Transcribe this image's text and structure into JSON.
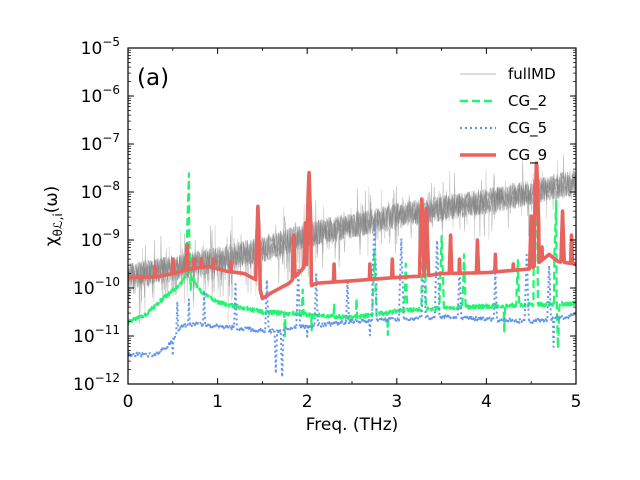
{
  "chart_data": {
    "type": "line",
    "panel_label": "(a)",
    "xlabel": "Freq. (THz)",
    "ylabel": "χθℒ,i(ω)",
    "ylabel_parts": {
      "chi": "χ",
      "sub_theta": "θ",
      "sub_L": "ℒ",
      "sub_sep": ",",
      "sub_i": "i",
      "arg": "(ω)"
    },
    "xlim": [
      0,
      5
    ],
    "ylim_log10": [
      -12,
      -5
    ],
    "x_ticks": [
      0,
      1,
      2,
      3,
      4,
      5
    ],
    "x_tick_labels": [
      "0",
      "1",
      "2",
      "3",
      "4",
      "5"
    ],
    "y_ticks": [
      {
        "base": "10",
        "exp": "−5",
        "value": -5
      },
      {
        "base": "10",
        "exp": "−6",
        "value": -6
      },
      {
        "base": "10",
        "exp": "−7",
        "value": -7
      },
      {
        "base": "10",
        "exp": "−8",
        "value": -8
      },
      {
        "base": "10",
        "exp": "−9",
        "value": -9
      },
      {
        "base": "10",
        "exp": "−10",
        "value": -10
      },
      {
        "base": "10",
        "exp": "−11",
        "value": -11
      },
      {
        "base": "10",
        "exp": "−12",
        "value": -12
      }
    ],
    "legend_position": "top-right",
    "series": [
      {
        "name": "fullMD",
        "color": "#7f7f7f",
        "style": "solid-noisy-band",
        "trend_log10": [
          [
            0.0,
            -9.75
          ],
          [
            0.5,
            -9.6
          ],
          [
            1.0,
            -9.4
          ],
          [
            1.5,
            -9.2
          ],
          [
            2.0,
            -8.9
          ],
          [
            2.5,
            -8.7
          ],
          [
            3.0,
            -8.5
          ],
          [
            3.5,
            -8.35
          ],
          [
            4.0,
            -8.2
          ],
          [
            4.5,
            -8.0
          ],
          [
            5.0,
            -7.8
          ]
        ]
      },
      {
        "name": "CG_2",
        "color": "#1ff56e",
        "style": "dashed",
        "baseline_log10": [
          [
            0.0,
            -10.72
          ],
          [
            0.2,
            -10.55
          ],
          [
            0.4,
            -10.2
          ],
          [
            0.6,
            -9.9
          ],
          [
            0.65,
            -9.7
          ],
          [
            0.7,
            -9.75
          ],
          [
            0.8,
            -10.05
          ],
          [
            1.0,
            -10.3
          ],
          [
            1.5,
            -10.5
          ],
          [
            2.0,
            -10.55
          ],
          [
            2.5,
            -10.62
          ],
          [
            3.0,
            -10.48
          ],
          [
            3.5,
            -10.42
          ],
          [
            4.0,
            -10.38
          ],
          [
            4.5,
            -10.35
          ],
          [
            5.0,
            -10.32
          ]
        ],
        "peaks": [
          [
            0.68,
            -7.6
          ],
          [
            1.95,
            -10.0
          ],
          [
            2.3,
            -10.3
          ],
          [
            2.55,
            -10.2
          ],
          [
            2.75,
            -9.2
          ],
          [
            3.1,
            -9.5
          ],
          [
            3.3,
            -8.4
          ],
          [
            3.5,
            -8.9
          ],
          [
            3.75,
            -9.3
          ],
          [
            4.35,
            -9.4
          ],
          [
            4.55,
            -7.8
          ],
          [
            4.78,
            -8.1
          ]
        ],
        "dips": [
          [
            0.7,
            -10.0
          ],
          [
            1.75,
            -11.0
          ],
          [
            2.05,
            -10.9
          ],
          [
            2.9,
            -11.0
          ],
          [
            4.2,
            -10.9
          ],
          [
            4.8,
            -11.3
          ]
        ]
      },
      {
        "name": "CG_5",
        "color": "#6495ed",
        "style": "dotted",
        "baseline_log10": [
          [
            0.0,
            -11.38
          ],
          [
            0.3,
            -11.4
          ],
          [
            0.45,
            -11.2
          ],
          [
            0.6,
            -10.8
          ],
          [
            0.8,
            -10.75
          ],
          [
            1.0,
            -10.8
          ],
          [
            1.3,
            -10.85
          ],
          [
            1.6,
            -10.9
          ],
          [
            1.8,
            -10.85
          ],
          [
            2.0,
            -10.8
          ],
          [
            2.5,
            -10.7
          ],
          [
            3.0,
            -10.65
          ],
          [
            3.5,
            -10.6
          ],
          [
            4.0,
            -10.65
          ],
          [
            4.5,
            -10.7
          ],
          [
            4.9,
            -10.6
          ],
          [
            5.0,
            -10.55
          ]
        ],
        "peaks": [
          [
            0.55,
            -10.3
          ],
          [
            0.68,
            -10.2
          ],
          [
            0.85,
            -10.1
          ],
          [
            1.2,
            -9.9
          ],
          [
            1.55,
            -9.8
          ],
          [
            1.9,
            -9.6
          ],
          [
            2.1,
            -9.7
          ],
          [
            2.45,
            -9.8
          ],
          [
            2.75,
            -8.6
          ],
          [
            3.05,
            -9.0
          ],
          [
            3.3,
            -9.3
          ],
          [
            3.45,
            -9.0
          ],
          [
            3.7,
            -9.5
          ],
          [
            4.1,
            -9.6
          ],
          [
            4.45,
            -9.3
          ],
          [
            4.7,
            -9.5
          ]
        ],
        "dips": [
          [
            0.5,
            -11.4
          ],
          [
            1.65,
            -11.8
          ],
          [
            1.72,
            -11.9
          ],
          [
            2.0,
            -11.0
          ],
          [
            2.7,
            -11.0
          ],
          [
            4.75,
            -11.2
          ]
        ]
      },
      {
        "name": "CG_9",
        "color": "#e8625e",
        "style": "solid-thick",
        "baseline_log10": [
          [
            0.0,
            -9.78
          ],
          [
            0.3,
            -9.77
          ],
          [
            0.5,
            -9.7
          ],
          [
            0.7,
            -9.6
          ],
          [
            0.9,
            -9.55
          ],
          [
            1.1,
            -9.65
          ],
          [
            1.3,
            -9.7
          ],
          [
            1.45,
            -9.85
          ],
          [
            1.5,
            -10.22
          ],
          [
            1.6,
            -10.1
          ],
          [
            1.8,
            -9.9
          ],
          [
            1.9,
            -9.7
          ],
          [
            2.0,
            -9.5
          ],
          [
            2.05,
            -9.95
          ],
          [
            2.1,
            -9.9
          ],
          [
            2.5,
            -9.85
          ],
          [
            3.0,
            -9.78
          ],
          [
            3.3,
            -9.75
          ],
          [
            3.5,
            -9.7
          ],
          [
            4.0,
            -9.68
          ],
          [
            4.5,
            -9.6
          ],
          [
            4.7,
            -9.3
          ],
          [
            4.8,
            -9.45
          ],
          [
            5.0,
            -9.5
          ]
        ],
        "peaks": [
          [
            0.3,
            -9.55
          ],
          [
            0.5,
            -9.4
          ],
          [
            0.66,
            -9.0
          ],
          [
            0.74,
            -9.3
          ],
          [
            0.82,
            -9.35
          ],
          [
            0.95,
            -9.4
          ],
          [
            1.15,
            -9.45
          ],
          [
            1.45,
            -8.3
          ],
          [
            1.85,
            -8.9
          ],
          [
            1.98,
            -8.6
          ],
          [
            2.02,
            -7.55
          ],
          [
            2.3,
            -9.5
          ],
          [
            2.7,
            -9.5
          ],
          [
            2.95,
            -9.4
          ],
          [
            3.28,
            -8.1
          ],
          [
            3.33,
            -8.3
          ],
          [
            3.6,
            -8.9
          ],
          [
            3.7,
            -9.4
          ],
          [
            3.9,
            -9.0
          ],
          [
            4.1,
            -9.3
          ],
          [
            4.3,
            -9.5
          ],
          [
            4.5,
            -8.5
          ],
          [
            4.56,
            -7.3
          ],
          [
            4.62,
            -9.1
          ],
          [
            4.68,
            -9.3
          ],
          [
            4.85,
            -8.4
          ],
          [
            4.95,
            -8.9
          ]
        ],
        "dips": []
      }
    ]
  }
}
